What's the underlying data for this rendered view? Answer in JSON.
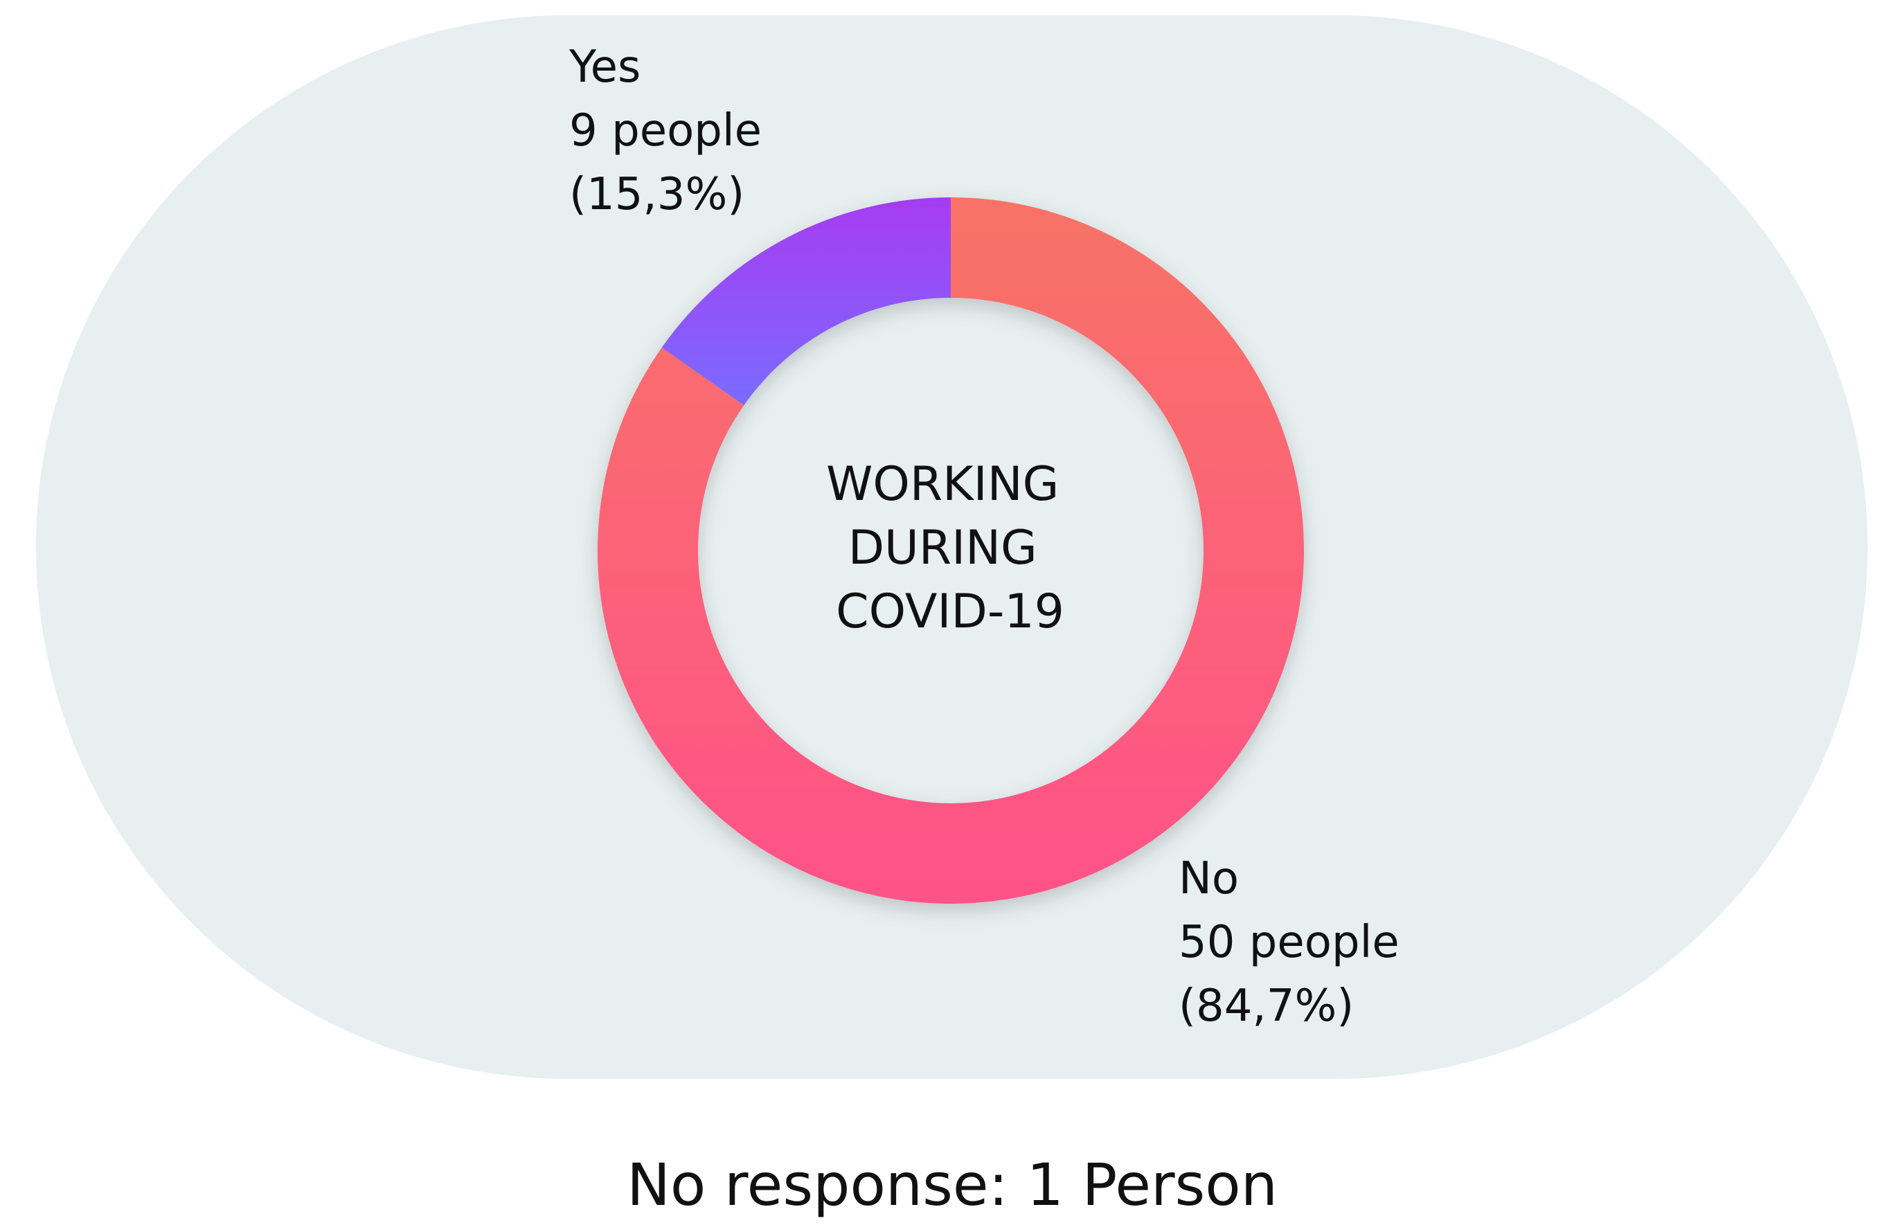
{
  "chart_data": {
    "type": "pie",
    "variant": "donut",
    "title_lines": [
      "WORKING",
      "DURING",
      "COVID-19"
    ],
    "slices": [
      {
        "category": "Yes",
        "value": 9,
        "percent": 15.3,
        "count_label": "9 people",
        "percent_label": "(15,3%)",
        "color_top": "#A63CF1",
        "color_bottom": "#7A6BFF"
      },
      {
        "category": "No",
        "value": 50,
        "percent": 84.7,
        "count_label": "50 people",
        "percent_label": "(84,7%)",
        "color_top": "#F87366",
        "color_bottom": "#FF5289"
      }
    ],
    "footnote": "No response: 1 Person",
    "background_color": "#E8EFF0"
  }
}
